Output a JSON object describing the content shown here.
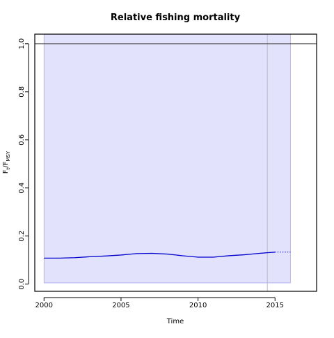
{
  "chart_data": {
    "type": "line",
    "title": "Relative fishing mortality",
    "xlabel": "Time",
    "ylabel": {
      "base": "F",
      "sub1": "t",
      "slash": "/F",
      "sub2": "MSY"
    },
    "xlim": [
      1999.4,
      2017.7
    ],
    "ylim": [
      -0.03,
      1.04
    ],
    "x_ticks": [
      2000,
      2005,
      2010,
      2015
    ],
    "y_ticks": [
      0.0,
      0.2,
      0.4,
      0.6,
      0.8,
      1.0
    ],
    "y_tick_labels": [
      "0.0",
      "0.2",
      "0.4",
      "0.6",
      "0.8",
      "1.0"
    ],
    "reference_line_y": 1.0,
    "vertical_line_x": 2014.5,
    "ci_band": {
      "x": [
        2000,
        2016
      ],
      "lower": [
        0.005,
        0.005
      ],
      "upper": [
        1.04,
        1.04
      ]
    },
    "series": [
      {
        "style": "solid",
        "x": [
          2000,
          2001,
          2002,
          2003,
          2004,
          2005,
          2006,
          2007,
          2008,
          2009,
          2010,
          2011,
          2012,
          2013,
          2014,
          2015
        ],
        "values": [
          0.108,
          0.108,
          0.11,
          0.114,
          0.117,
          0.121,
          0.127,
          0.128,
          0.125,
          0.118,
          0.112,
          0.112,
          0.118,
          0.122,
          0.128,
          0.133
        ]
      },
      {
        "style": "dotted",
        "x": [
          2015,
          2016
        ],
        "values": [
          0.133,
          0.133
        ]
      }
    ],
    "colors": {
      "band": "#e2e2fd",
      "band_edge": "#a8a8f0",
      "line": "#0000cc",
      "refline": "#555555",
      "vline": "#b8b8c8"
    }
  }
}
